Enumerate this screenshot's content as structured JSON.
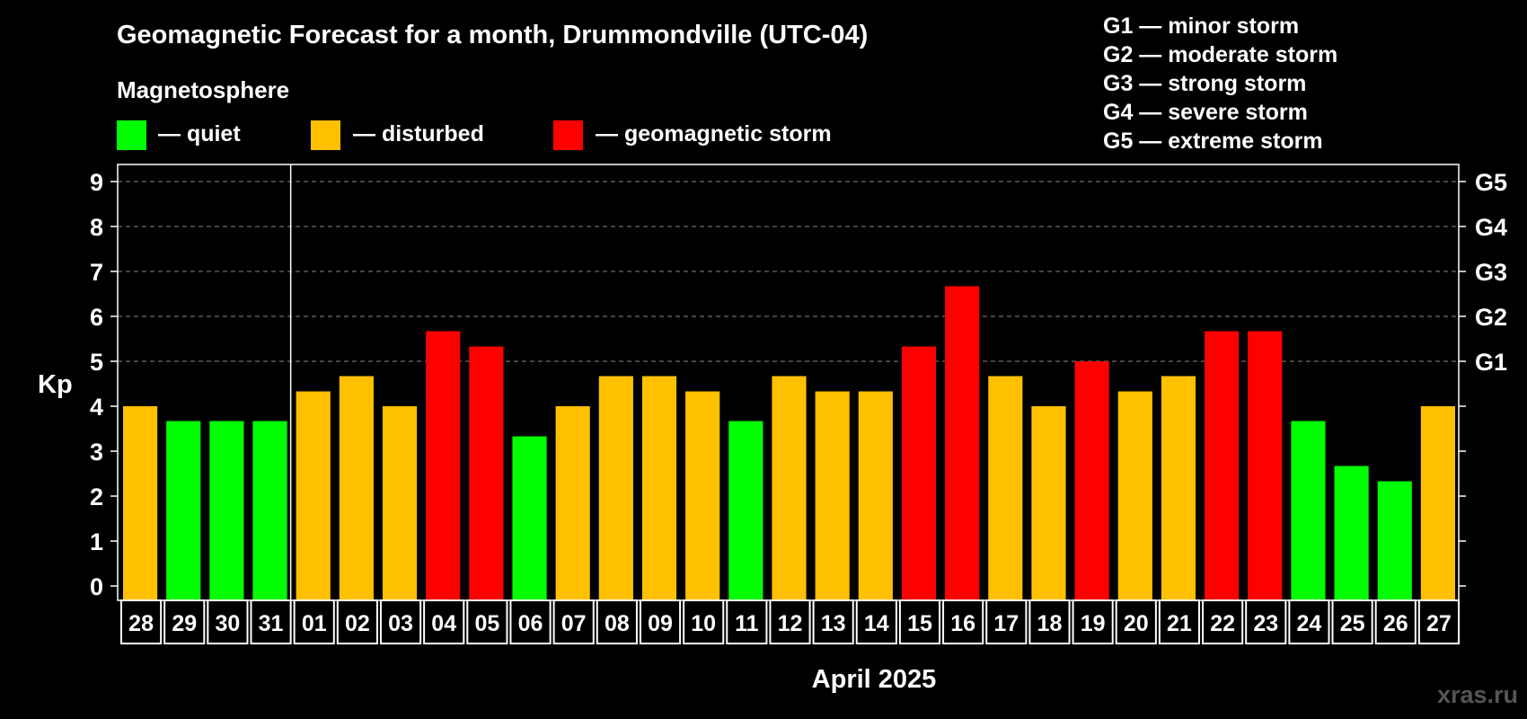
{
  "header": {
    "title": "Geomagnetic Forecast for a month, Drummondville (UTC-04)",
    "magnetosphere_label": "Magnetosphere",
    "legend": [
      {
        "label": "— quiet",
        "color": "#00ff00"
      },
      {
        "label": "— disturbed",
        "color": "#ffc000"
      },
      {
        "label": "— geomagnetic storm",
        "color": "#ff0000"
      }
    ],
    "storm_levels": [
      "G1 — minor storm",
      "G2 — moderate storm",
      "G3 — strong storm",
      "G4 — severe storm",
      "G5 — extreme storm"
    ]
  },
  "watermark": "xras.ru",
  "chart_data": {
    "type": "bar",
    "title": "Geomagnetic Forecast for a month, Drummondville (UTC-04)",
    "xlabel": "April 2025",
    "ylabel": "Kp",
    "ylim": [
      0,
      9
    ],
    "yticks": [
      "0",
      "1",
      "2",
      "3",
      "4",
      "5",
      "6",
      "7",
      "8",
      "9"
    ],
    "right_axis": [
      {
        "value": 5,
        "label": "G1"
      },
      {
        "value": 6,
        "label": "G2"
      },
      {
        "value": 7,
        "label": "G3"
      },
      {
        "value": 8,
        "label": "G4"
      },
      {
        "value": 9,
        "label": "G5"
      }
    ],
    "grid": true,
    "categories": [
      "28",
      "29",
      "30",
      "31",
      "01",
      "02",
      "03",
      "04",
      "05",
      "06",
      "07",
      "08",
      "09",
      "10",
      "11",
      "12",
      "13",
      "14",
      "15",
      "16",
      "17",
      "18",
      "19",
      "20",
      "21",
      "22",
      "23",
      "24",
      "25",
      "26",
      "27"
    ],
    "values": [
      4.0,
      3.67,
      3.67,
      3.67,
      4.33,
      4.67,
      4.0,
      5.67,
      5.33,
      3.33,
      4.0,
      4.67,
      4.67,
      4.33,
      3.67,
      4.67,
      4.33,
      4.33,
      5.33,
      6.67,
      4.67,
      4.0,
      5.0,
      4.33,
      4.67,
      5.67,
      5.67,
      3.67,
      2.67,
      2.33,
      4.0
    ],
    "colors": {
      "quiet": "#00ff00",
      "disturbed": "#ffc000",
      "storm": "#ff0000"
    },
    "month_divider_after": "31"
  }
}
